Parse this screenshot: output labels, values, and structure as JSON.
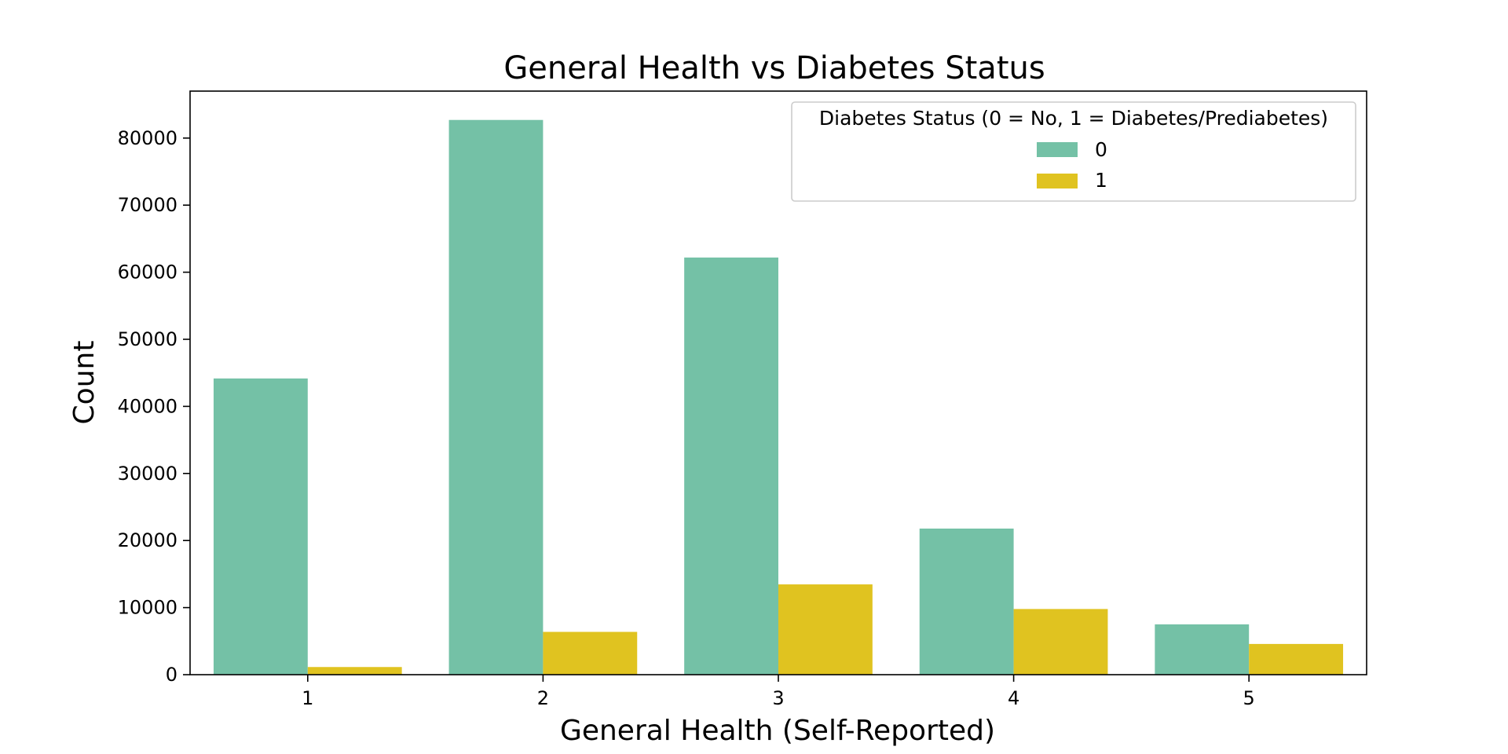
{
  "chart_data": {
    "type": "bar",
    "title": "General Health vs Diabetes Status",
    "xlabel": "General Health (Self-Reported)",
    "ylabel": "Count",
    "categories": [
      "1",
      "2",
      "3",
      "4",
      "5"
    ],
    "yticks": [
      0,
      10000,
      20000,
      30000,
      40000,
      50000,
      60000,
      70000,
      80000
    ],
    "ylim": [
      0,
      87000
    ],
    "grid": false,
    "legend": {
      "title": "Diabetes Status (0 = No, 1 = Diabetes/Prediabetes)",
      "placement": "top-right"
    },
    "series": [
      {
        "name": "0",
        "color": "#74c1a6",
        "values": [
          44160,
          82700,
          62190,
          21780,
          7500
        ]
      },
      {
        "name": "1",
        "color": "#e0c320",
        "values": [
          1140,
          6380,
          13460,
          9790,
          4580
        ]
      }
    ]
  }
}
